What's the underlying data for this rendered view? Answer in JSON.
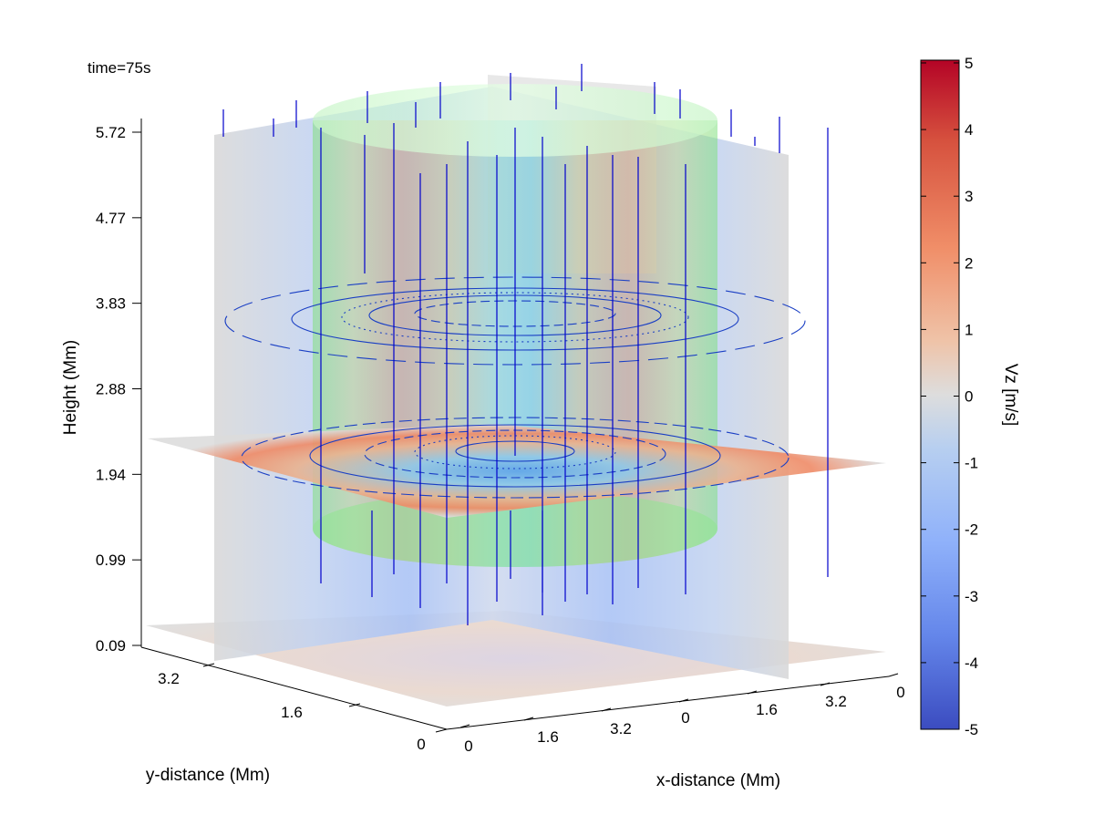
{
  "chart_data": {
    "type": "heatmap",
    "annotation": "time=75s",
    "axes": {
      "z": {
        "label": "Height (Mm)",
        "ticks": [
          "0.09",
          "0.99",
          "1.94",
          "2.88",
          "3.83",
          "4.77",
          "5.72"
        ]
      },
      "x": {
        "label": "x-distance (Mm)",
        "ticks": [
          "0",
          "1.6",
          "3.2",
          "0",
          "1.6",
          "3.2",
          "0"
        ]
      },
      "y": {
        "label": "y-distance (Mm)",
        "ticks": [
          "0",
          "1.6",
          "3.2"
        ]
      }
    },
    "colorbar": {
      "label": "Vz [m/s]",
      "range": [
        -5,
        5
      ],
      "ticks": [
        "5",
        "4",
        "3",
        "2",
        "1",
        "0",
        "-1",
        "-2",
        "-3",
        "-4",
        "-5"
      ],
      "colors": {
        "high": "#b40426",
        "mid": "#dddddd",
        "low": "#3b4cc0"
      }
    },
    "colors": {
      "flux_tube": "#7fe07f",
      "field_lines": "#0000cc",
      "contours": "#1a3fc4"
    }
  }
}
